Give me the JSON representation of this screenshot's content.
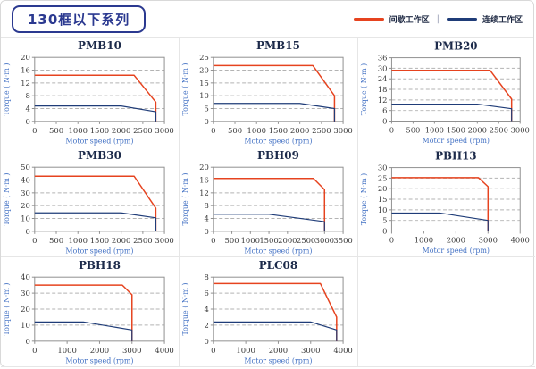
{
  "header": {
    "title": "130框以下系列",
    "legend": [
      {
        "label": "间歇工作区",
        "color": "#e6431f"
      },
      {
        "label": "连续工作区",
        "color": "#1f3c78"
      }
    ],
    "legend_separator": "|"
  },
  "chart_data": [
    {
      "type": "line",
      "title": "PMB10",
      "xlabel": "Motor speed (rpm)",
      "ylabel": "Torque ( N·m )",
      "xlim": [
        0,
        3000
      ],
      "xstep": 500,
      "ylim": [
        0,
        20
      ],
      "ystep": 4,
      "grid": "horizontal-dashed",
      "series": [
        {
          "name": "间歇工作区",
          "color": "#e6431f",
          "width": 1.5,
          "points": [
            [
              0,
              14.4
            ],
            [
              2300,
              14.4
            ],
            [
              2800,
              6
            ],
            [
              2800,
              0
            ]
          ]
        },
        {
          "name": "连续工作区",
          "color": "#1f3c78",
          "width": 1.2,
          "points": [
            [
              0,
              4.8
            ],
            [
              2000,
              4.8
            ],
            [
              2800,
              3
            ],
            [
              2800,
              0
            ]
          ]
        }
      ]
    },
    {
      "type": "line",
      "title": "PMB15",
      "xlabel": "Motor speed (rpm)",
      "ylabel": "Torque ( N·m )",
      "xlim": [
        0,
        3000
      ],
      "xstep": 500,
      "ylim": [
        0,
        25
      ],
      "ystep": 5,
      "grid": "horizontal-dashed",
      "series": [
        {
          "name": "间歇工作区",
          "color": "#e6431f",
          "width": 1.5,
          "points": [
            [
              0,
              21.8
            ],
            [
              2300,
              21.8
            ],
            [
              2800,
              10
            ],
            [
              2800,
              0
            ]
          ]
        },
        {
          "name": "连续工作区",
          "color": "#1f3c78",
          "width": 1.2,
          "points": [
            [
              0,
              7
            ],
            [
              2000,
              7
            ],
            [
              2800,
              5
            ],
            [
              2800,
              0
            ]
          ]
        }
      ]
    },
    {
      "type": "line",
      "title": "PMB20",
      "xlabel": "Motor speed (rpm)",
      "ylabel": "Torque ( N·m )",
      "xlim": [
        0,
        3000
      ],
      "xstep": 500,
      "ylim": [
        0,
        36
      ],
      "ystep": 6,
      "grid": "horizontal-dashed",
      "series": [
        {
          "name": "间歇工作区",
          "color": "#e6431f",
          "width": 1.5,
          "points": [
            [
              0,
              28.8
            ],
            [
              2300,
              28.8
            ],
            [
              2800,
              12.5
            ],
            [
              2800,
              0
            ]
          ]
        },
        {
          "name": "连续工作区",
          "color": "#1f3c78",
          "width": 1.2,
          "points": [
            [
              0,
              9.6
            ],
            [
              2000,
              9.6
            ],
            [
              2800,
              7
            ],
            [
              2800,
              0
            ]
          ]
        }
      ]
    },
    {
      "type": "line",
      "title": "PMB30",
      "xlabel": "Motor speed (rpm)",
      "ylabel": "Torque ( N·m )",
      "xlim": [
        0,
        3000
      ],
      "xstep": 500,
      "ylim": [
        0,
        50
      ],
      "ystep": 10,
      "grid": "horizontal-dashed",
      "series": [
        {
          "name": "间歇工作区",
          "color": "#e6431f",
          "width": 1.5,
          "points": [
            [
              0,
              43
            ],
            [
              2300,
              43
            ],
            [
              2800,
              18
            ],
            [
              2800,
              0
            ]
          ]
        },
        {
          "name": "连续工作区",
          "color": "#1f3c78",
          "width": 1.2,
          "points": [
            [
              0,
              14.4
            ],
            [
              2000,
              14.4
            ],
            [
              2800,
              10.5
            ],
            [
              2800,
              0
            ]
          ]
        }
      ]
    },
    {
      "type": "line",
      "title": "PBH09",
      "xlabel": "Motor speed (rpm)",
      "ylabel": "Torque ( N·m )",
      "xlim": [
        0,
        3500
      ],
      "xstep": 500,
      "ylim": [
        0,
        20
      ],
      "ystep": 4,
      "grid": "horizontal-dashed",
      "series": [
        {
          "name": "间歇工作区",
          "color": "#e6431f",
          "width": 1.5,
          "points": [
            [
              0,
              16.5
            ],
            [
              2700,
              16.5
            ],
            [
              3000,
              13
            ],
            [
              3000,
              0
            ]
          ]
        },
        {
          "name": "连续工作区",
          "color": "#1f3c78",
          "width": 1.2,
          "points": [
            [
              0,
              5.3
            ],
            [
              1500,
              5.3
            ],
            [
              3000,
              3
            ],
            [
              3000,
              0
            ]
          ]
        }
      ]
    },
    {
      "type": "line",
      "title": "PBH13",
      "xlabel": "Motor speed (rpm)",
      "ylabel": "Torque ( N·m )",
      "xlim": [
        0,
        4000
      ],
      "xstep": 1000,
      "ylim": [
        0,
        30
      ],
      "ystep": 5,
      "grid": "horizontal-dashed",
      "series": [
        {
          "name": "间歇工作区",
          "color": "#e6431f",
          "width": 1.5,
          "points": [
            [
              0,
              25.2
            ],
            [
              2700,
              25.2
            ],
            [
              3000,
              21
            ],
            [
              3000,
              0
            ]
          ]
        },
        {
          "name": "连续工作区",
          "color": "#1f3c78",
          "width": 1.2,
          "points": [
            [
              0,
              8.5
            ],
            [
              1500,
              8.5
            ],
            [
              3000,
              5
            ],
            [
              3000,
              0
            ]
          ]
        }
      ]
    },
    {
      "type": "line",
      "title": "PBH18",
      "xlabel": "Motor speed (rpm)",
      "ylabel": "Torque ( N·m )",
      "xlim": [
        0,
        4000
      ],
      "xstep": 1000,
      "ylim": [
        0,
        40
      ],
      "ystep": 10,
      "grid": "horizontal-dashed",
      "series": [
        {
          "name": "间歇工作区",
          "color": "#e6431f",
          "width": 1.5,
          "points": [
            [
              0,
              35
            ],
            [
              2700,
              35
            ],
            [
              3000,
              29
            ],
            [
              3000,
              0
            ]
          ]
        },
        {
          "name": "连续工作区",
          "color": "#1f3c78",
          "width": 1.2,
          "points": [
            [
              0,
              12
            ],
            [
              1500,
              12
            ],
            [
              3000,
              7
            ],
            [
              3000,
              0
            ]
          ]
        }
      ]
    },
    {
      "type": "line",
      "title": "PLC08",
      "xlabel": "Motor speed (rpm)",
      "ylabel": "Torque ( N·m )",
      "xlim": [
        0,
        4000
      ],
      "xstep": 1000,
      "ylim": [
        0,
        8
      ],
      "ystep": 2,
      "grid": "horizontal-dashed",
      "series": [
        {
          "name": "间歇工作区",
          "color": "#e6431f",
          "width": 1.5,
          "points": [
            [
              0,
              7.2
            ],
            [
              3300,
              7.2
            ],
            [
              3800,
              3
            ],
            [
              3800,
              0
            ]
          ]
        },
        {
          "name": "连续工作区",
          "color": "#1f3c78",
          "width": 1.2,
          "points": [
            [
              0,
              2.4
            ],
            [
              3000,
              2.4
            ],
            [
              3800,
              1.4
            ],
            [
              3800,
              0
            ]
          ]
        }
      ]
    }
  ]
}
